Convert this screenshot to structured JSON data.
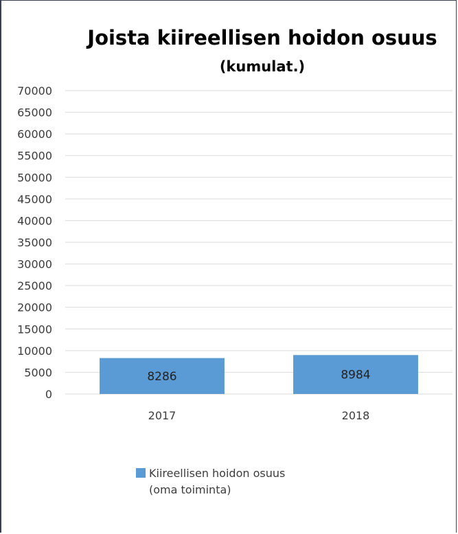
{
  "chart_data": {
    "type": "bar",
    "title": "Joista kiireellisen hoidon osuus",
    "subtitle": "(kumulat.)",
    "categories": [
      "2017",
      "2018"
    ],
    "series": [
      {
        "name": "Kiireellisen hoidon osuus (oma toiminta)",
        "legend_lines": [
          "Kiireellisen hoidon osuus",
          "(oma toiminta)"
        ],
        "values": [
          8286,
          8984
        ],
        "data_labels": [
          "8286",
          "8984"
        ],
        "color": "#5b9bd5"
      }
    ],
    "ylim": [
      0,
      70000
    ],
    "yticks": [
      "0",
      "5000",
      "10000",
      "15000",
      "20000",
      "25000",
      "30000",
      "35000",
      "40000",
      "45000",
      "50000",
      "55000",
      "60000",
      "65000",
      "70000"
    ],
    "grid": true,
    "gridline_color": "#d9d9d9",
    "legend_position": "bottom"
  }
}
